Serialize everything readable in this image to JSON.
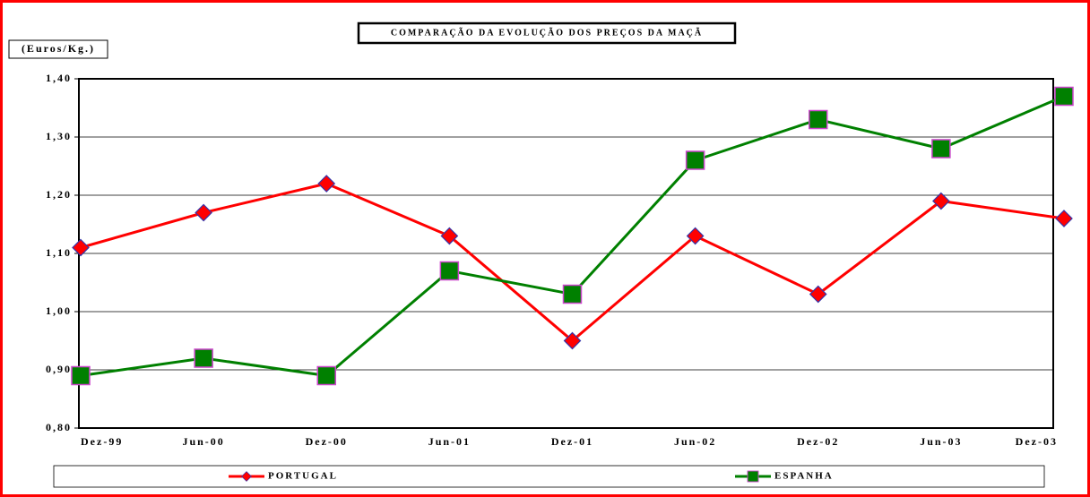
{
  "chart_data": {
    "type": "line",
    "title": "COMPARAÇÃO DA EVOLUÇÃO DOS PREÇOS DA MAÇÃ",
    "y_label": "(Euros/Kg.)",
    "categories": [
      "Dez-99",
      "Jun-00",
      "Dez-00",
      "Jun-01",
      "Dez-01",
      "Jun-02",
      "Dez-02",
      "Jun-03",
      "Dez-03"
    ],
    "series": [
      {
        "name": "PORTUGAL",
        "color": "#ff0000",
        "marker": "diamond",
        "marker_color": "#ff0000",
        "marker_edge": "#3333aa",
        "values": [
          1.11,
          1.17,
          1.22,
          1.13,
          0.95,
          1.13,
          1.03,
          1.19,
          1.16
        ]
      },
      {
        "name": "ESPANHA",
        "color": "#008000",
        "marker": "square",
        "marker_color": "#008000",
        "marker_edge": "#cc44cc",
        "values": [
          0.89,
          0.92,
          0.89,
          1.07,
          1.03,
          1.26,
          1.33,
          1.28,
          1.37
        ]
      }
    ],
    "ylim": [
      0.8,
      1.4
    ],
    "yticks": [
      {
        "value": 0.8,
        "label": "0,80"
      },
      {
        "value": 0.9,
        "label": "0,90"
      },
      {
        "value": 1.0,
        "label": "1,00"
      },
      {
        "value": 1.1,
        "label": "1,10"
      },
      {
        "value": 1.2,
        "label": "1,20"
      },
      {
        "value": 1.3,
        "label": "1,30"
      },
      {
        "value": 1.4,
        "label": "1,40"
      }
    ],
    "grid": true,
    "legend": "bottom"
  }
}
